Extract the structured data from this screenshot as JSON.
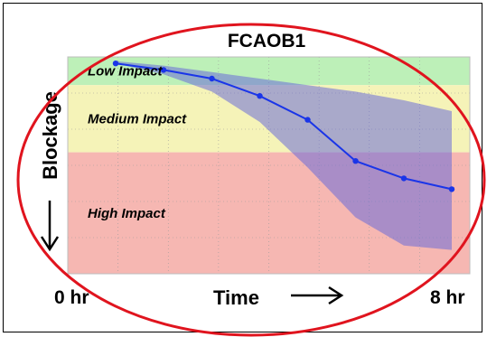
{
  "chart_data": {
    "type": "area",
    "title": "FCAOB1",
    "xlabel": "Time",
    "ylabel": "Blockage",
    "x_tick_labels": [
      "0 hr",
      "8 hr"
    ],
    "xlim": [
      0,
      8
    ],
    "ylim": [
      0,
      100
    ],
    "x_arrow_icon": "right-arrow",
    "y_arrow_icon": "down-arrow",
    "grid": true,
    "bands": [
      {
        "name": "Low Impact",
        "from": 0,
        "to": 13,
        "color": "#bdf0b8"
      },
      {
        "name": "Medium Impact",
        "from": 13,
        "to": 44,
        "color": "#f5f3b8"
      },
      {
        "name": "High Impact",
        "from": 44,
        "to": 100,
        "color": "#f6b7b2"
      }
    ],
    "series": [
      {
        "x": [
          0,
          1.14,
          2.29,
          3.43,
          4.57,
          5.71,
          6.86,
          8.0
        ],
        "values": [
          3,
          6,
          10,
          18,
          29,
          48,
          56,
          61
        ],
        "color": "#1a35e8"
      }
    ],
    "range_band": {
      "x": [
        0,
        1.14,
        2.29,
        3.43,
        4.57,
        5.71,
        6.86,
        8.0
      ],
      "lower": [
        2,
        4,
        7,
        10,
        13,
        16,
        20,
        25
      ],
      "upper": [
        3,
        8,
        16,
        30,
        51,
        74,
        87,
        89
      ],
      "color": "#6a6cd8"
    },
    "annotation": {
      "shape": "ellipse",
      "color": "#e0141e"
    }
  }
}
